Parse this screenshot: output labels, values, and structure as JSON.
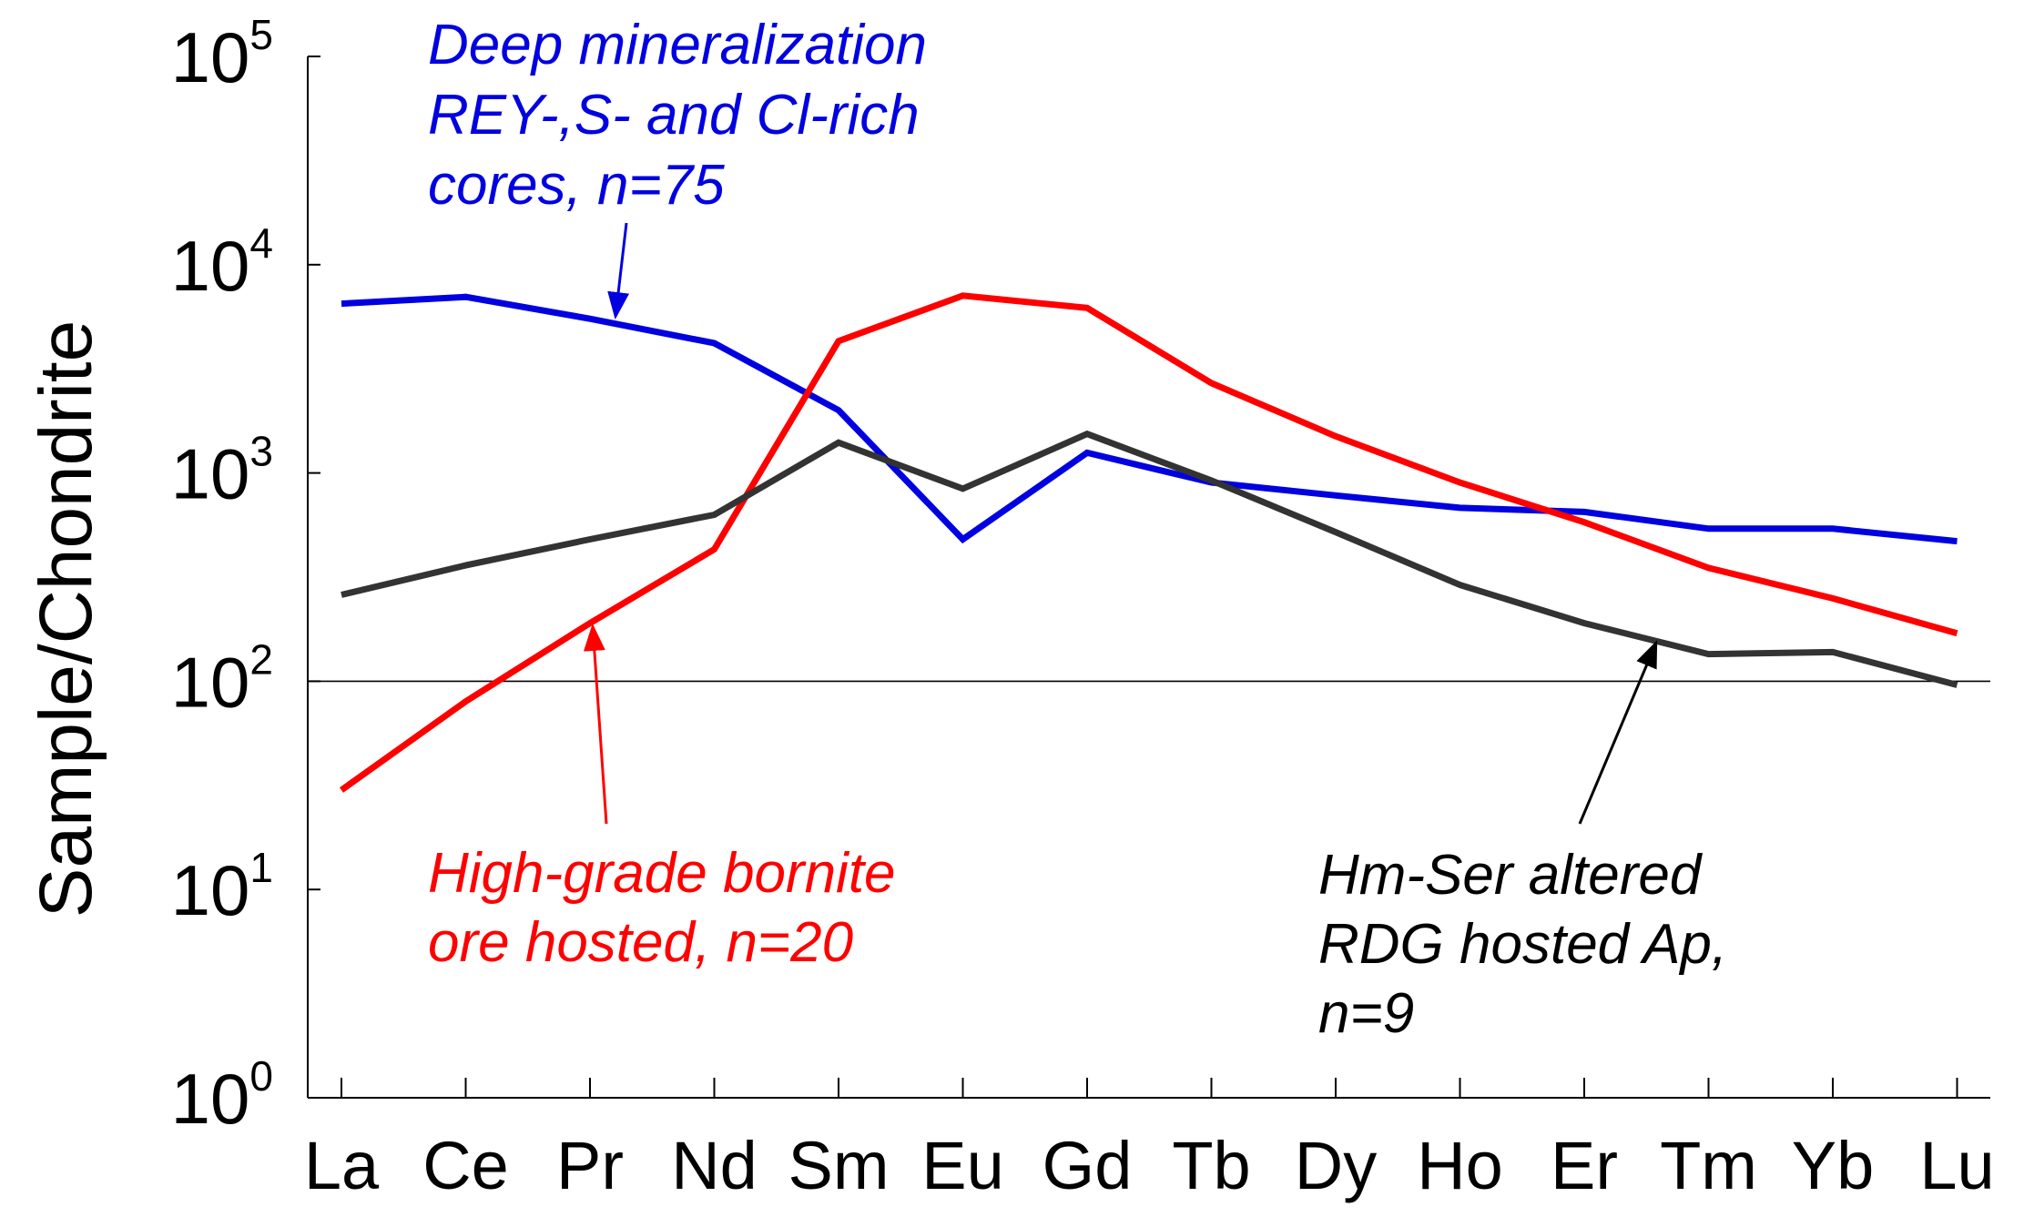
{
  "chart_data": {
    "type": "line",
    "title": "",
    "xlabel": "",
    "ylabel": "Sample/Chondrite",
    "yscale": "log",
    "ylim": [
      1,
      100000
    ],
    "y_ticks": [
      {
        "value": 1,
        "base": "10",
        "exp": "0"
      },
      {
        "value": 10,
        "base": "10",
        "exp": "1"
      },
      {
        "value": 100,
        "base": "10",
        "exp": "2"
      },
      {
        "value": 1000,
        "base": "10",
        "exp": "3"
      },
      {
        "value": 10000,
        "base": "10",
        "exp": "4"
      },
      {
        "value": 100000,
        "base": "10",
        "exp": "5"
      }
    ],
    "reference_line": 100,
    "categories": [
      "La",
      "Ce",
      "Pr",
      "Nd",
      "Sm",
      "Eu",
      "Gd",
      "Tb",
      "Dy",
      "Ho",
      "Er",
      "Tm",
      "Yb",
      "Lu"
    ],
    "series": [
      {
        "name": "Deep mineralization REY-,S- and Cl-rich cores, n=75",
        "color": "#0000e0",
        "values": [
          6500,
          7000,
          5500,
          4200,
          2000,
          480,
          1250,
          900,
          780,
          680,
          650,
          540,
          540,
          470
        ]
      },
      {
        "name": "High-grade bornite ore hosted, n=20",
        "color": "#ff0000",
        "values": [
          30,
          80,
          190,
          430,
          4300,
          7100,
          6200,
          2700,
          1500,
          900,
          580,
          350,
          250,
          170
        ]
      },
      {
        "name": "Hm-Ser altered RDG hosted Ap, n=9",
        "color": "#333333",
        "values": [
          260,
          360,
          480,
          630,
          1400,
          840,
          1540,
          920,
          520,
          290,
          190,
          135,
          138,
          96
        ]
      }
    ],
    "annotations": [
      {
        "series": 0,
        "color": "#0000e0",
        "lines": [
          "Deep mineralization",
          "REY-,S- and Cl-rich",
          "cores, n=75"
        ],
        "target_category": "Pr"
      },
      {
        "series": 1,
        "color": "#ff0000",
        "lines": [
          "High-grade bornite",
          "ore hosted, n=20"
        ],
        "target_category": "Pr"
      },
      {
        "series": 2,
        "color": "#000000",
        "lines": [
          "Hm-Ser altered",
          "RDG hosted Ap,",
          "n=9"
        ],
        "target_category": "Tm"
      }
    ]
  }
}
